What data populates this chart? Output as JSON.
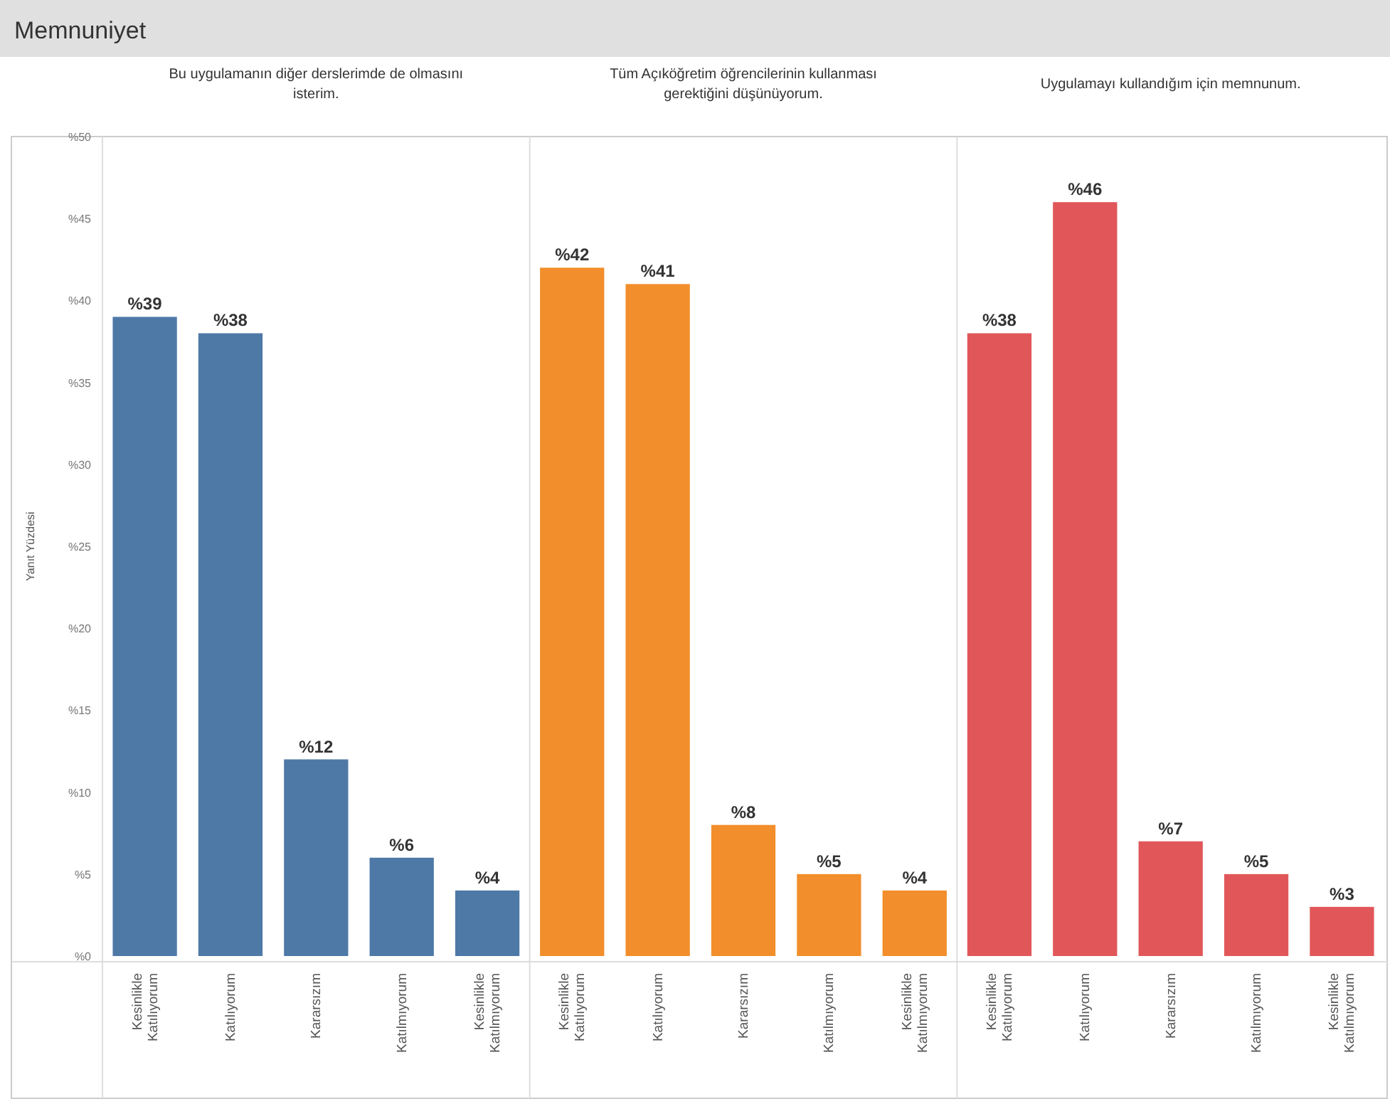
{
  "chart_data": [
    {
      "type": "bar",
      "title": "Memnuniyet",
      "subtitle": "Bu uygulamanın diğer derslerimde de olmasını isterim.",
      "ylabel": "Yanıt Yüzdesi",
      "categories": [
        "Kesinlikle Katılıyorum",
        "Katılıyorum",
        "Kararsızım",
        "Katılmıyorum",
        "Kesinlikle Katılmıyorum"
      ],
      "values": [
        39,
        38,
        12,
        6,
        4
      ],
      "value_labels": [
        "%39",
        "%38",
        "%12",
        "%6",
        "%4"
      ],
      "color": "#4e79a7",
      "ylim": [
        0,
        50
      ],
      "yticks": [
        {
          "value": 0,
          "label": "%0"
        },
        {
          "value": 5,
          "label": "%5"
        },
        {
          "value": 10,
          "label": "%10"
        },
        {
          "value": 15,
          "label": "%15"
        },
        {
          "value": 20,
          "label": "%20"
        },
        {
          "value": 25,
          "label": "%25"
        },
        {
          "value": 30,
          "label": "%30"
        },
        {
          "value": 35,
          "label": "%35"
        },
        {
          "value": 40,
          "label": "%40"
        },
        {
          "value": 45,
          "label": "%45"
        },
        {
          "value": 50,
          "label": "%50"
        }
      ]
    },
    {
      "type": "bar",
      "subtitle": "Tüm Açıköğretim öğrencilerinin kullanması gerektiğini düşünüyorum.",
      "categories": [
        "Kesinlikle Katılıyorum",
        "Katılıyorum",
        "Kararsızım",
        "Katılmıyorum",
        "Kesinlikle Katılmıyorum"
      ],
      "values": [
        42,
        41,
        8,
        5,
        4
      ],
      "value_labels": [
        "%42",
        "%41",
        "%8",
        "%5",
        "%4"
      ],
      "color": "#f28e2b",
      "ylim": [
        0,
        50
      ],
      "tick_labels": "x"
    },
    {
      "type": "bar",
      "subtitle": "Uygulamayı kullandığım için memnunum.",
      "categories": [
        "Kesinlikle Katılıyorum",
        "Katılıyorum",
        "Kararsızım",
        "Katılmıyorum",
        "Kesinlikle Katılmıyorum"
      ],
      "values": [
        38,
        46,
        7,
        5,
        3
      ],
      "value_labels": [
        "%38",
        "%46",
        "%7",
        "%5",
        "%3"
      ],
      "color": "#e15759",
      "ylim": [
        0,
        50
      ],
      "tick_labels": "x"
    }
  ]
}
